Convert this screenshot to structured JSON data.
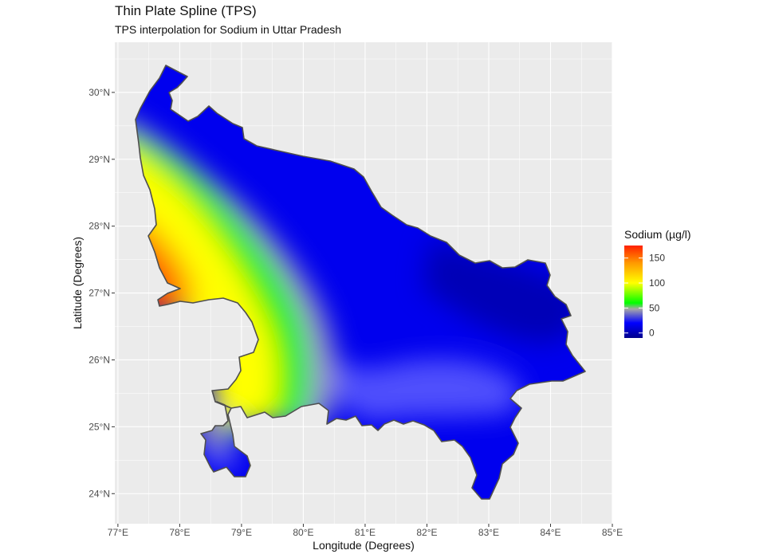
{
  "title": "Thin Plate Spline (TPS)",
  "subtitle": "TPS interpolation for Sodium in Uttar Pradesh",
  "xlabel": "Longitude (Degrees)",
  "ylabel": "Latitude (Degrees)",
  "x_ticks": [
    {
      "value": 77,
      "label": "77°E"
    },
    {
      "value": 78,
      "label": "78°E"
    },
    {
      "value": 79,
      "label": "79°E"
    },
    {
      "value": 80,
      "label": "80°E"
    },
    {
      "value": 81,
      "label": "81°E"
    },
    {
      "value": 82,
      "label": "82°E"
    },
    {
      "value": 83,
      "label": "83°E"
    },
    {
      "value": 84,
      "label": "84°E"
    },
    {
      "value": 85,
      "label": "85°E"
    }
  ],
  "y_ticks": [
    {
      "value": 24,
      "label": "24°N"
    },
    {
      "value": 25,
      "label": "25°N"
    },
    {
      "value": 26,
      "label": "26°N"
    },
    {
      "value": 27,
      "label": "27°N"
    },
    {
      "value": 28,
      "label": "28°N"
    },
    {
      "value": 29,
      "label": "29°N"
    },
    {
      "value": 30,
      "label": "30°N"
    }
  ],
  "xlim": [
    76.95,
    85.0
  ],
  "ylim": [
    23.55,
    30.75
  ],
  "legend": {
    "title": "Sodium (µg/l)",
    "placement": "right",
    "range": [
      -10,
      175
    ],
    "ticks": [
      {
        "value": 0,
        "label": "0"
      },
      {
        "value": 50,
        "label": "50"
      },
      {
        "value": 100,
        "label": "100"
      },
      {
        "value": 150,
        "label": "150"
      }
    ],
    "color_stops": [
      {
        "value": -10,
        "color": "#00008b"
      },
      {
        "value": 20,
        "color": "#0000ff"
      },
      {
        "value": 48,
        "color": "#a8a8a8"
      },
      {
        "value": 60,
        "color": "#00ff00"
      },
      {
        "value": 100,
        "color": "#ffff00"
      },
      {
        "value": 140,
        "color": "#ff9a00"
      },
      {
        "value": 175,
        "color": "#ff2000"
      }
    ]
  },
  "colors": {
    "panel_bg": "#ebebeb",
    "grid": "#ffffff",
    "boundary": "#555555"
  }
}
